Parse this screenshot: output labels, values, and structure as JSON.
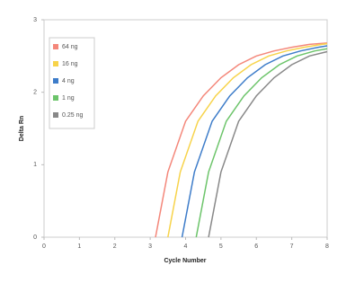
{
  "chart_data": {
    "type": "line",
    "x_label": "Cycle Number",
    "y_label": "Delta Rn",
    "xlim": [
      0,
      8
    ],
    "xticks": [
      0,
      1,
      2,
      3,
      4,
      5,
      6,
      7,
      8
    ],
    "ylim": [
      0,
      3
    ],
    "yticks": [
      0,
      1,
      2,
      3
    ],
    "grid": false,
    "legend": "upper left",
    "series": [
      {
        "name": "64 ng",
        "color": "#f4877a",
        "x": [
          3.15,
          3.5,
          4,
          4.5,
          5,
          5.5,
          6,
          6.5,
          7,
          7.5,
          8
        ],
        "values": [
          0,
          0.9,
          1.6,
          1.95,
          2.2,
          2.38,
          2.5,
          2.57,
          2.62,
          2.66,
          2.68
        ]
      },
      {
        "name": "16 ng",
        "color": "#f7d34a",
        "x": [
          3.5,
          3.85,
          4.35,
          4.85,
          5.35,
          5.85,
          6.35,
          6.85,
          7.35,
          7.85,
          8
        ],
        "values": [
          0,
          0.9,
          1.6,
          1.95,
          2.2,
          2.38,
          2.5,
          2.57,
          2.62,
          2.66,
          2.67
        ]
      },
      {
        "name": "4 ng",
        "color": "#3d7cc9",
        "x": [
          3.9,
          4.25,
          4.75,
          5.25,
          5.75,
          6.25,
          6.75,
          7.25,
          7.75,
          8
        ],
        "values": [
          0,
          0.9,
          1.6,
          1.95,
          2.2,
          2.38,
          2.5,
          2.57,
          2.62,
          2.64
        ]
      },
      {
        "name": "1 ng",
        "color": "#6cc46a",
        "x": [
          4.3,
          4.65,
          5.15,
          5.65,
          6.15,
          6.65,
          7.15,
          7.65,
          8
        ],
        "values": [
          0,
          0.9,
          1.6,
          1.95,
          2.2,
          2.38,
          2.5,
          2.57,
          2.6
        ]
      },
      {
        "name": "0.25 ng",
        "color": "#888888",
        "x": [
          4.65,
          5,
          5.5,
          6,
          6.5,
          7,
          7.5,
          8
        ],
        "values": [
          0,
          0.9,
          1.6,
          1.95,
          2.2,
          2.38,
          2.5,
          2.56
        ]
      }
    ]
  }
}
